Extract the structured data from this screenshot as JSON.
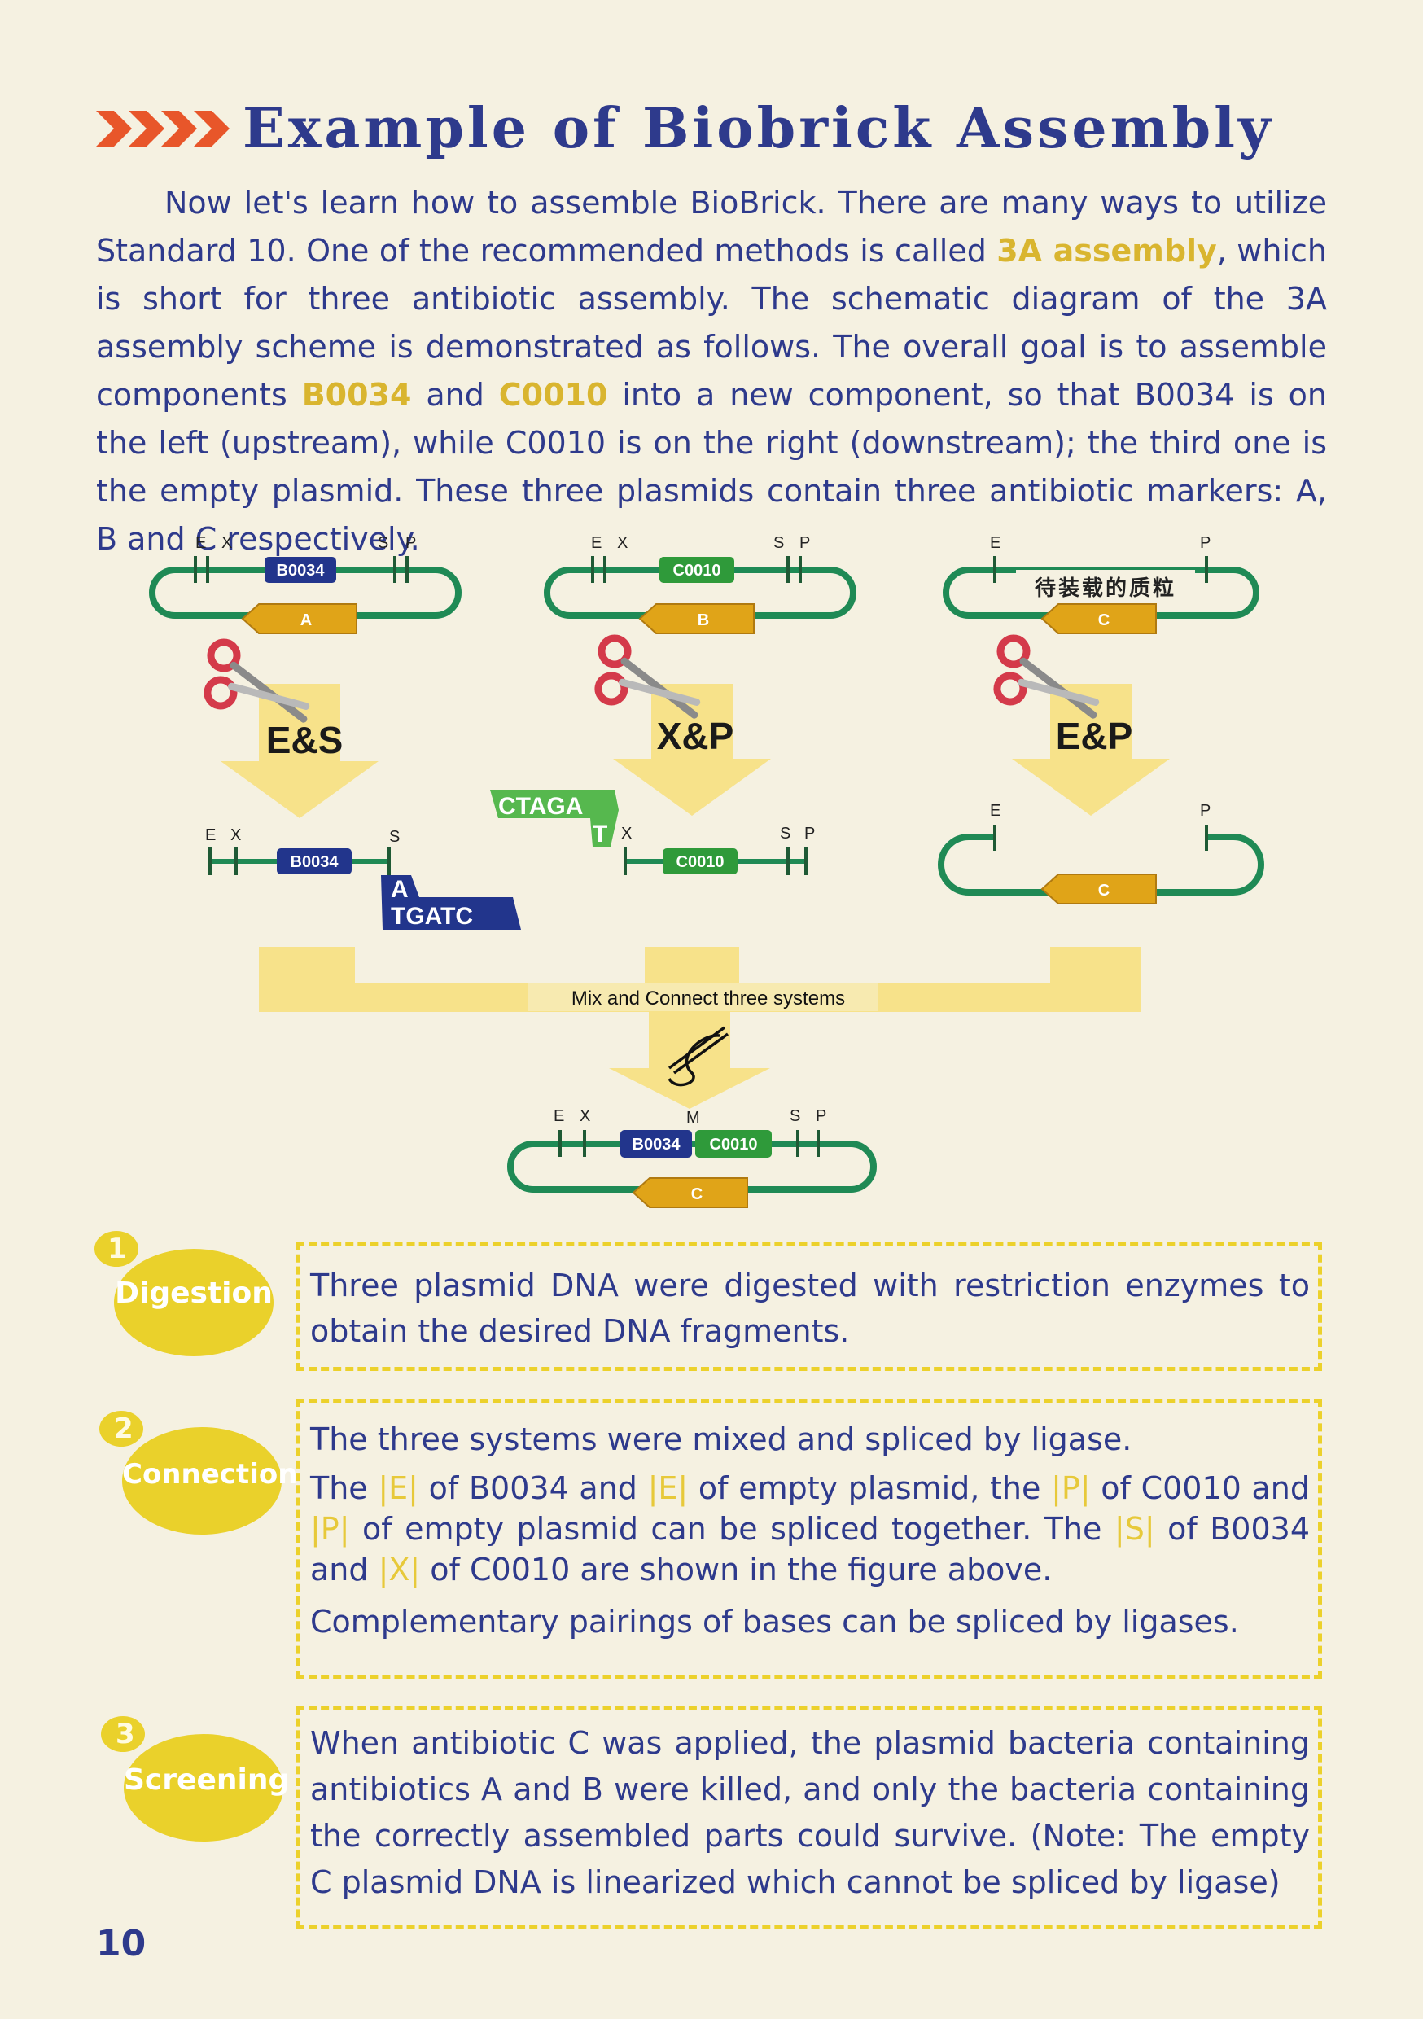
{
  "title": "Example of Biobrick Assembly",
  "intro": {
    "p1": "Now let's learn how to assemble BioBrick. There are many ways to utilize Standard 10. One of the recommended methods is called ",
    "hl1": "3A assembly",
    "p2": ", which is short for three antibiotic assembly. The schematic diagram of the 3A assembly scheme is demonstrated as follows. The overall goal is to assemble components ",
    "hl2": "B0034",
    "p3": " and ",
    "hl3": "C0010",
    "p4": " into a new component, so that B0034 is on the left (upstream), while C0010 is on the right (downstream); the third one is the empty plasmid. These three plasmids contain three antibiotic markers: A, B and C respectively."
  },
  "diagram": {
    "site_e": "E",
    "site_x": "X",
    "site_s": "S",
    "site_p": "P",
    "site_m": "M",
    "part_b0034": "B0034",
    "part_c0010": "C0010",
    "marker_a": "A",
    "marker_b": "B",
    "marker_c": "C",
    "empty_plasmid_label": "待装载的质粒",
    "cut_1": "E&S",
    "cut_2": "X&P",
    "cut_3": "E&P",
    "overhang_top": "CTAGA",
    "overhang_top_t": "T",
    "overhang_bottom_a": "A",
    "overhang_bottom": "TGATC",
    "mix_label": "Mix and Connect three systems",
    "colors": {
      "backbone": "#1f8a55",
      "b0034": "#22358c",
      "c0010": "#2f9a3a",
      "marker": "#e0a418",
      "arrow": "#f7e28a",
      "scissors": "#d43a4a"
    },
    "icons": [
      "scissors-icon",
      "needle-thread-icon",
      "chevron-arrows-icon"
    ]
  },
  "steps": [
    {
      "num": "1",
      "label": "Digestion",
      "text": "Three plasmid DNA were digested with restriction enzymes to obtain the desired DNA fragments."
    },
    {
      "num": "2",
      "label": "Connection",
      "line1": "The three systems were mixed and spliced by ligase.",
      "l2a": "The ",
      "e1": "|E|",
      "l2b": " of B0034 and ",
      "e2": "|E|",
      "l2c": " of empty plasmid, the ",
      "p1": "|P|",
      "l2d": " of C0010 and ",
      "p2": "|P|",
      "l2e": " of empty plasmid can be spliced together. The ",
      "s1": "|S|",
      "l2f": " of B0034 and ",
      "x1": "|X|",
      "l2g": " of C0010 are shown in the figure above.",
      "line3": "Complementary pairings of bases can be spliced by ligases."
    },
    {
      "num": "3",
      "label": "Screening",
      "text": "When antibiotic C was applied, the plasmid bacteria containing antibiotics A and B were killed, and only the bacteria containing the correctly assembled parts could survive. (Note: The empty C plasmid DNA is linearized which cannot be spliced by ligase)"
    }
  ],
  "page_number": "10"
}
